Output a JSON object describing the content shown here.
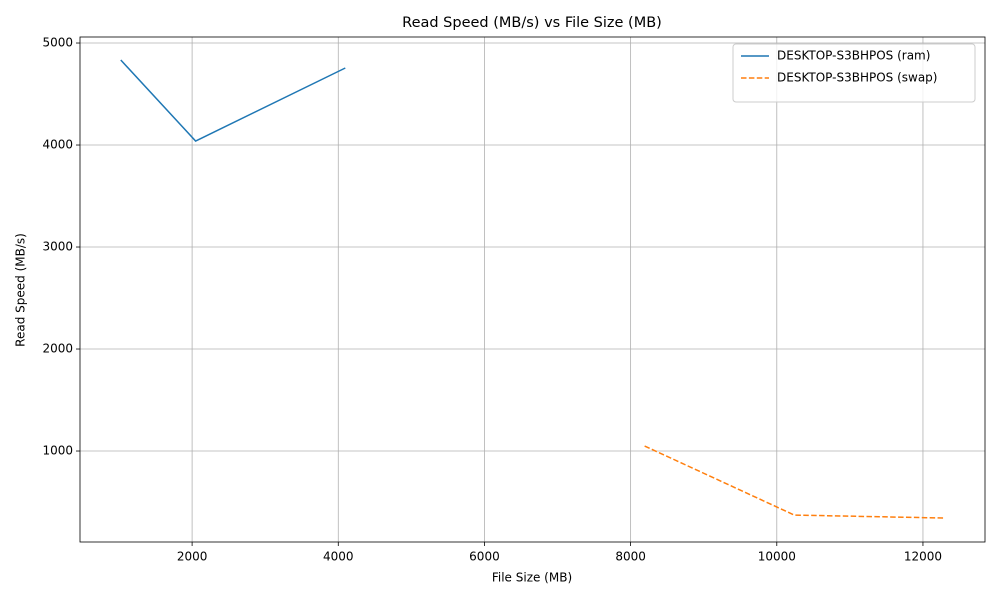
{
  "chart_data": {
    "type": "line",
    "title": "Read Speed (MB/s) vs File Size (MB)",
    "x_label": "File Size (MB)",
    "y_label": "Read Speed (MB/s)",
    "series": [
      {
        "name": "DESKTOP-S3BHPOS (ram)",
        "color": "#1f77b4",
        "dash": "solid",
        "x": [
          1024,
          2048,
          4096
        ],
        "values": [
          4833,
          4039,
          4755
        ]
      },
      {
        "name": "DESKTOP-S3BHPOS (swap)",
        "color": "#ff7f0e",
        "dash": "dashed",
        "x": [
          8192,
          10240,
          12288
        ],
        "values": [
          1049,
          372,
          343
        ]
      }
    ],
    "xlim": [
      466,
      12849
    ],
    "xticks": [
      2000,
      4000,
      6000,
      8000,
      10000,
      12000
    ],
    "ylim": [
      108,
      5059
    ],
    "yticks": [
      1000,
      2000,
      3000,
      4000,
      5000
    ],
    "grid": true,
    "legend": "upper-right"
  }
}
